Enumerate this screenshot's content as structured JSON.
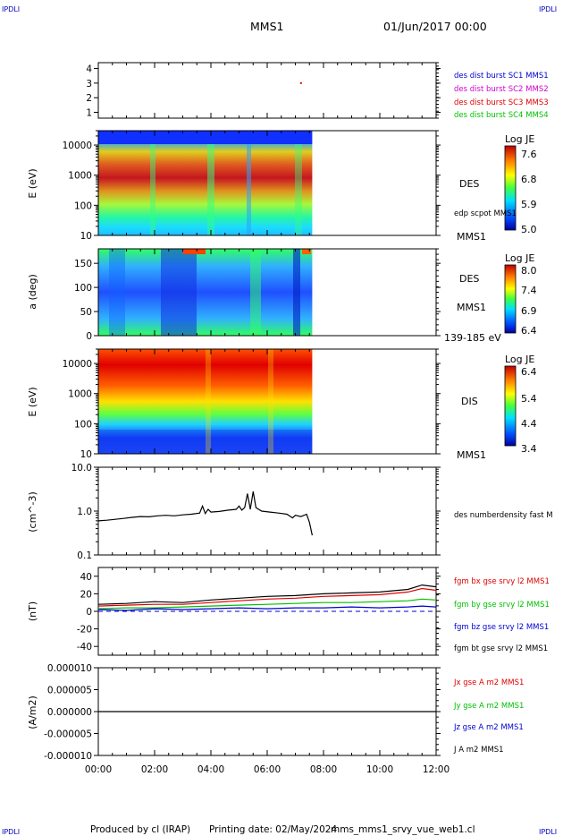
{
  "header": {
    "corner_left": "IPDLI",
    "corner_right": "IPDLI",
    "title": "MMS1",
    "datetime": "01/Jun/2017 00:00"
  },
  "footer": {
    "produced": "Produced by cl (IRAP)",
    "printing_date": "Printing date: 02/May/2024",
    "file": "mms_mms1_srvy_vue_web1.cl",
    "corner_left": "IPDLI",
    "corner_right": "IPDLI"
  },
  "colors": {
    "c1": "#0000d0",
    "c2": "#d000d0",
    "c3": "#e00000",
    "c4": "#00c000",
    "bx": "#e00000",
    "by": "#00c000",
    "bz": "#0000d0",
    "bt": "#000000",
    "data_line": "#000000"
  },
  "chart_data": [
    {
      "type": "scatter",
      "panel": "des-dist-burst",
      "ylabel": "",
      "yticks": [
        "4",
        "3",
        "2",
        "1"
      ],
      "ylim": [
        0.6,
        4.4
      ],
      "series": [
        {
          "name": "des dist burst SC1 MMS1",
          "points": []
        },
        {
          "name": "des dist burst SC2 MMS2",
          "points": []
        },
        {
          "name": "des dist burst SC3 MMS3",
          "points": [
            [
              7.2,
              3
            ]
          ]
        },
        {
          "name": "des dist burst SC4 MMS4",
          "points": []
        }
      ]
    },
    {
      "type": "heatmap",
      "panel": "des-energy",
      "ylabel": "E (eV)",
      "yticks": [
        "10000",
        "1000",
        "100",
        "10"
      ],
      "ylim": [
        10,
        30000
      ],
      "yscale": "log",
      "instrument": "DES",
      "annotation": "edp scpot MMS1",
      "spacecraft": "MMS1",
      "colorbar": {
        "label": "Log JE",
        "ticks": [
          "7.6",
          "6.8",
          "5.9",
          "5.0"
        ],
        "range": [
          5.0,
          7.6
        ]
      },
      "data_end_hour": 7.6
    },
    {
      "type": "heatmap",
      "panel": "des-pitch-angle",
      "ylabel": "a (deg)",
      "yticks": [
        "150",
        "100",
        "50",
        "0"
      ],
      "ylim": [
        0,
        180
      ],
      "instrument": "DES",
      "spacecraft": "MMS1",
      "energy_range": "139-185 eV",
      "colorbar": {
        "label": "Log JE",
        "ticks": [
          "8.0",
          "7.4",
          "6.9",
          "6.4"
        ],
        "range": [
          6.4,
          8.0
        ]
      },
      "data_end_hour": 7.6
    },
    {
      "type": "heatmap",
      "panel": "dis-energy",
      "ylabel": "E (eV)",
      "yticks": [
        "10000",
        "1000",
        "100",
        "10"
      ],
      "ylim": [
        10,
        30000
      ],
      "yscale": "log",
      "instrument": "DIS",
      "spacecraft": "MMS1",
      "colorbar": {
        "label": "Log JE",
        "ticks": [
          "6.4",
          "5.4",
          "4.4",
          "3.4"
        ],
        "range": [
          3.4,
          6.4
        ]
      },
      "data_end_hour": 7.6
    },
    {
      "type": "line",
      "panel": "density",
      "ylabel": "(cm^-3)",
      "yticks": [
        "10.0",
        "1.0",
        "0.1"
      ],
      "ylim": [
        0.1,
        10
      ],
      "yscale": "log",
      "series": [
        {
          "name": "des numberdensity fast M",
          "x": [
            0,
            0.3,
            0.6,
            0.9,
            1.2,
            1.5,
            1.8,
            2.1,
            2.4,
            2.7,
            3.0,
            3.3,
            3.6,
            3.7,
            3.8,
            3.9,
            4.0,
            4.3,
            4.6,
            4.9,
            5.0,
            5.1,
            5.2,
            5.3,
            5.4,
            5.5,
            5.6,
            5.8,
            6.1,
            6.4,
            6.7,
            6.9,
            7.0,
            7.2,
            7.4,
            7.5,
            7.6
          ],
          "y": [
            0.6,
            0.62,
            0.65,
            0.68,
            0.72,
            0.75,
            0.74,
            0.78,
            0.8,
            0.78,
            0.82,
            0.85,
            0.9,
            1.3,
            0.88,
            1.1,
            0.95,
            0.98,
            1.05,
            1.1,
            1.3,
            1.05,
            1.2,
            2.5,
            1.1,
            2.8,
            1.2,
            1.0,
            0.95,
            0.9,
            0.85,
            0.7,
            0.8,
            0.75,
            0.85,
            0.55,
            0.28
          ]
        }
      ]
    },
    {
      "type": "line",
      "panel": "magnetic-field",
      "ylabel": "(nT)",
      "yticks": [
        "40",
        "20",
        "0",
        "-20",
        "-40"
      ],
      "ylim": [
        -50,
        50
      ],
      "series": [
        {
          "name": "fgm bx gse srvy l2 MMS1",
          "color_key": "bx",
          "x": [
            0,
            1,
            2,
            3,
            4,
            5,
            6,
            7,
            8,
            9,
            10,
            11,
            11.5,
            12
          ],
          "y": [
            6,
            7,
            8,
            8,
            10,
            12,
            14,
            15,
            17,
            18,
            19,
            22,
            26,
            24
          ]
        },
        {
          "name": "fgm by gse srvy l2 MMS1",
          "color_key": "by",
          "x": [
            0,
            1,
            2,
            3,
            4,
            5,
            6,
            7,
            8,
            9,
            10,
            11,
            11.5,
            12
          ],
          "y": [
            3,
            4,
            4,
            5,
            6,
            7,
            8,
            9,
            10,
            10,
            11,
            12,
            14,
            13
          ]
        },
        {
          "name": "fgm bz gse srvy l2 MMS1",
          "color_key": "bz",
          "x": [
            0,
            1,
            2,
            3,
            4,
            5,
            6,
            7,
            8,
            9,
            10,
            11,
            11.5,
            12
          ],
          "y": [
            2,
            1,
            3,
            2,
            3,
            4,
            3,
            4,
            4,
            5,
            4,
            5,
            6,
            5
          ]
        },
        {
          "name": "fgm bt gse srvy l2 MMS1",
          "color_key": "bt",
          "x": [
            0,
            1,
            2,
            3,
            4,
            5,
            6,
            7,
            8,
            9,
            10,
            11,
            11.5,
            12
          ],
          "y": [
            8,
            9,
            11,
            10,
            13,
            15,
            17,
            18,
            20,
            21,
            22,
            25,
            30,
            28
          ]
        }
      ]
    },
    {
      "type": "line",
      "panel": "current-density",
      "ylabel": "(A/m2)",
      "yticks": [
        "0.000010",
        "0.000005",
        "0.000000",
        "-0.000005",
        "-0.000010"
      ],
      "ylim": [
        -1e-05,
        1e-05
      ],
      "series": [
        {
          "name": "Jx gse A m2 MMS1",
          "color_key": "bx",
          "x": [],
          "y": []
        },
        {
          "name": "Jy gse A m2 MMS1",
          "color_key": "by",
          "x": [],
          "y": []
        },
        {
          "name": "Jz gse A m2 MMS1",
          "color_key": "bz",
          "x": [],
          "y": []
        },
        {
          "name": "J A m2 MMS1",
          "color_key": "bt",
          "x": [
            0,
            12
          ],
          "y": [
            0,
            0
          ]
        }
      ]
    }
  ],
  "time_axis": {
    "ticks": [
      "00:00",
      "02:00",
      "04:00",
      "06:00",
      "08:00",
      "10:00",
      "12:00"
    ],
    "range_hours": [
      0,
      12
    ]
  }
}
